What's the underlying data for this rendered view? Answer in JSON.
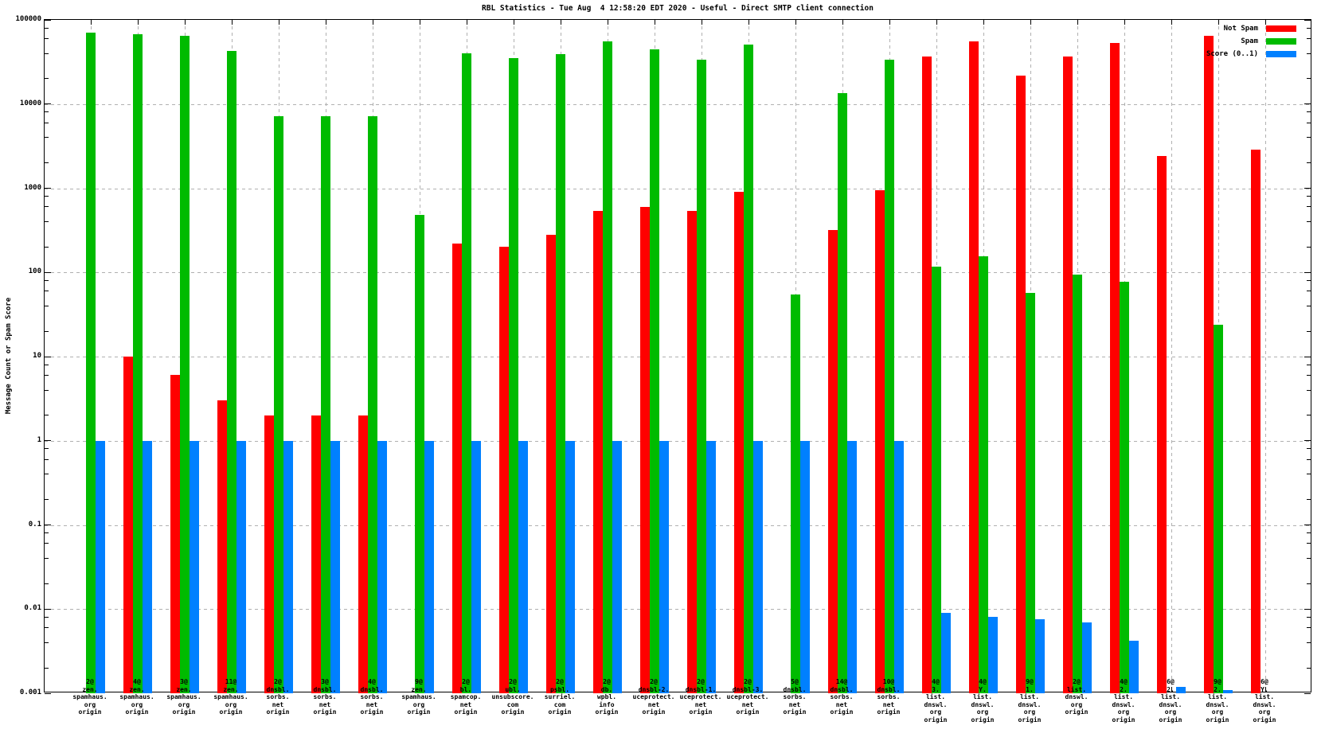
{
  "chart_data": {
    "type": "bar",
    "title": "RBL Statistics - Tue Aug  4 12:58:20 EDT 2020 - Useful - Direct SMTP client connection",
    "ylabel": "Message Count or Spam Score",
    "xlabel": "",
    "y_scale": "log",
    "ylim": [
      0.001,
      100000
    ],
    "y_ticks": [
      "100000",
      "10000",
      "1000",
      "100",
      "10",
      "1",
      "0.1",
      "0.01",
      "0.001"
    ],
    "grid": true,
    "legend_position": "top-right",
    "categories": [
      [
        "2@",
        "zen.",
        "spamhaus.",
        "org",
        "origin"
      ],
      [
        "4@",
        "zen.",
        "spamhaus.",
        "org",
        "origin"
      ],
      [
        "3@",
        "zen.",
        "spamhaus.",
        "org",
        "origin"
      ],
      [
        "11@",
        "zen.",
        "spamhaus.",
        "org",
        "origin"
      ],
      [
        "2@",
        "dnsbl.",
        "sorbs.",
        "net",
        "origin"
      ],
      [
        "3@",
        "dnsbl.",
        "sorbs.",
        "net",
        "origin"
      ],
      [
        "4@",
        "dnsbl.",
        "sorbs.",
        "net",
        "origin"
      ],
      [
        "9@",
        "zen.",
        "spamhaus.",
        "org",
        "origin"
      ],
      [
        "2@",
        "bl.",
        "spamcop.",
        "net",
        "origin"
      ],
      [
        "2@",
        "ubl.",
        "unsubscore.",
        "com",
        "origin"
      ],
      [
        "2@",
        "psbl.",
        "surriel.",
        "com",
        "origin"
      ],
      [
        "2@",
        "db.",
        "wpbl.",
        "info",
        "origin"
      ],
      [
        "2@",
        "dnsbl-2.",
        "uceprotect.",
        "net",
        "origin"
      ],
      [
        "2@",
        "dnsbl-1.",
        "uceprotect.",
        "net",
        "origin"
      ],
      [
        "2@",
        "dnsbl-3.",
        "uceprotect.",
        "net",
        "origin"
      ],
      [
        "5@",
        "dnsbl.",
        "sorbs.",
        "net",
        "origin"
      ],
      [
        "14@",
        "dnsbl.",
        "sorbs.",
        "net",
        "origin"
      ],
      [
        "10@",
        "dnsbl.",
        "sorbs.",
        "net",
        "origin"
      ],
      [
        "4@",
        "3.",
        "list.",
        "dnswl.",
        "org",
        "origin"
      ],
      [
        "4@",
        "Y.",
        "list.",
        "dnswl.",
        "org",
        "origin"
      ],
      [
        "9@",
        "1.",
        "list.",
        "dnswl.",
        "org",
        "origin"
      ],
      [
        "2@",
        "list.",
        "dnswl.",
        "org",
        "origin"
      ],
      [
        "4@",
        "2.",
        "list.",
        "dnswl.",
        "org",
        "origin"
      ],
      [
        "6@",
        "2.",
        "list.",
        "dnswl.",
        "org",
        "origin"
      ],
      [
        "9@",
        "2.",
        "list.",
        "dnswl.",
        "org",
        "origin"
      ],
      [
        "6@",
        "Y.",
        "list.",
        "dnswl.",
        "org",
        "origin"
      ]
    ],
    "series": [
      {
        "name": "Not Spam",
        "color": "#ff0000",
        "values": [
          null,
          10,
          6,
          3,
          2,
          2,
          2,
          null,
          220,
          200,
          280,
          540,
          600,
          540,
          900,
          null,
          320,
          950,
          37000,
          55000,
          22000,
          37000,
          53000,
          2400,
          65000,
          2900
        ]
      },
      {
        "name": "Spam",
        "color": "#00bb00",
        "values": [
          70000,
          68000,
          65000,
          43000,
          7200,
          7200,
          7200,
          480,
          40000,
          35000,
          39000,
          56000,
          45000,
          34000,
          51000,
          55,
          13500,
          34000,
          118,
          155,
          57,
          95,
          78,
          null,
          24,
          null
        ]
      },
      {
        "name": "Score (0..1)",
        "color": "#0080ff",
        "values": [
          1,
          1,
          1,
          1,
          1,
          1,
          1,
          1,
          1,
          1,
          1,
          1,
          1,
          1,
          1,
          1,
          1,
          1,
          0.009,
          0.008,
          0.0075,
          0.007,
          0.0042,
          0.0012,
          0.0011,
          0.001
        ]
      }
    ],
    "colors": {
      "grid": "#b0b0b0",
      "axis": "#000000",
      "background": "#ffffff"
    }
  }
}
